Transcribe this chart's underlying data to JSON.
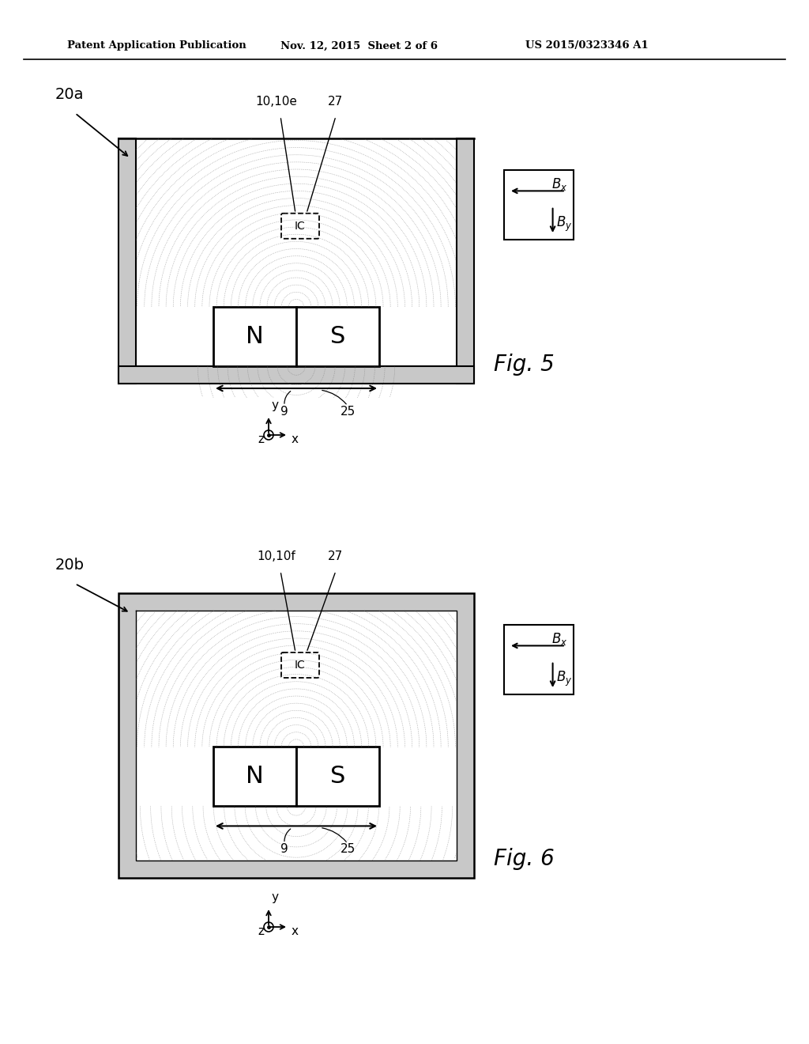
{
  "bg_color": "#ffffff",
  "line_color": "#000000",
  "wall_color": "#c8c8c8",
  "field_color": "#777777",
  "header_text": "Patent Application Publication",
  "header_date": "Nov. 12, 2015  Sheet 2 of 6",
  "header_patent": "US 2015/0323346 A1",
  "fig5_label": "20a",
  "fig6_label": "20b",
  "fig5_caption": "Fig. 5",
  "fig6_caption": "Fig. 6",
  "label_10_10e": "10,10e",
  "label_10_10f": "10,10f",
  "label_27": "27",
  "label_9": "9",
  "label_25": "25",
  "label_N": "N",
  "label_S": "S",
  "label_IC": "IC",
  "label_x": "x",
  "label_y": "y",
  "label_z": "z"
}
